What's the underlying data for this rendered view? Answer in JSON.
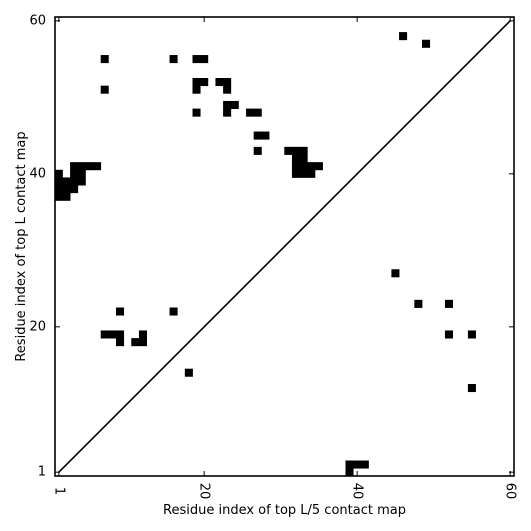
{
  "chart_data": {
    "type": "heatmap",
    "title": "",
    "xlabel": "Residue index of top L/5 contact map",
    "ylabel": "Residue index of top L contact map",
    "xlim": [
      1,
      61
    ],
    "ylim": [
      1,
      61
    ],
    "x_ticks": [
      {
        "value": 1,
        "label": "1"
      },
      {
        "value": 20,
        "label": "20"
      },
      {
        "value": 40,
        "label": "40"
      },
      {
        "value": 60,
        "label": "60"
      }
    ],
    "y_ticks": [
      {
        "value": 1,
        "label": "1"
      },
      {
        "value": 20,
        "label": "20"
      },
      {
        "value": 40,
        "label": "40"
      },
      {
        "value": 60,
        "label": "60"
      }
    ],
    "diagonal": true,
    "cell_color": "#000000",
    "background_color": "#ffffff",
    "cells": [
      [
        7,
        55
      ],
      [
        16,
        55
      ],
      [
        19,
        55
      ],
      [
        20,
        55
      ],
      [
        7,
        51
      ],
      [
        19,
        52
      ],
      [
        20,
        52
      ],
      [
        22,
        52
      ],
      [
        23,
        52
      ],
      [
        19,
        51
      ],
      [
        23,
        51
      ],
      [
        23,
        49
      ],
      [
        24,
        49
      ],
      [
        23,
        48
      ],
      [
        19,
        48
      ],
      [
        26,
        48
      ],
      [
        27,
        48
      ],
      [
        27,
        45
      ],
      [
        28,
        45
      ],
      [
        27,
        43
      ],
      [
        46,
        58
      ],
      [
        49,
        57
      ],
      [
        31,
        43
      ],
      [
        32,
        43
      ],
      [
        33,
        43
      ],
      [
        32,
        42
      ],
      [
        33,
        42
      ],
      [
        32,
        41
      ],
      [
        33,
        41
      ],
      [
        34,
        41
      ],
      [
        35,
        41
      ],
      [
        32,
        40
      ],
      [
        33,
        40
      ],
      [
        34,
        40
      ],
      [
        3,
        41
      ],
      [
        4,
        41
      ],
      [
        5,
        41
      ],
      [
        6,
        41
      ],
      [
        1,
        40
      ],
      [
        3,
        40
      ],
      [
        4,
        40
      ],
      [
        1,
        39
      ],
      [
        2,
        39
      ],
      [
        3,
        39
      ],
      [
        4,
        39
      ],
      [
        1,
        38
      ],
      [
        2,
        38
      ],
      [
        3,
        38
      ],
      [
        1,
        37
      ],
      [
        2,
        37
      ],
      [
        45,
        27
      ],
      [
        48,
        23
      ],
      [
        52,
        23
      ],
      [
        52,
        19
      ],
      [
        55,
        19
      ],
      [
        9,
        22
      ],
      [
        16,
        22
      ],
      [
        7,
        19
      ],
      [
        8,
        19
      ],
      [
        9,
        19
      ],
      [
        12,
        19
      ],
      [
        9,
        18
      ],
      [
        11,
        18
      ],
      [
        12,
        18
      ],
      [
        18,
        14
      ],
      [
        55,
        12
      ],
      [
        39,
        2
      ],
      [
        40,
        2
      ],
      [
        41,
        2
      ],
      [
        39,
        1
      ]
    ]
  }
}
